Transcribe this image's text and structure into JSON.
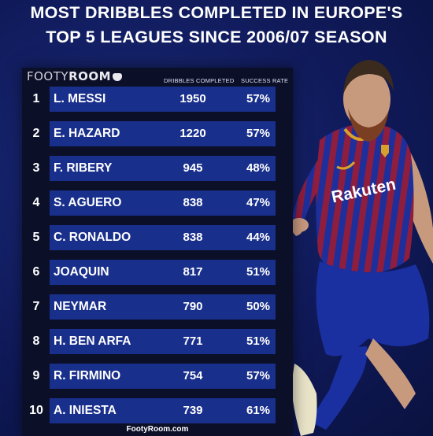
{
  "title": {
    "line1": "MOST DRIBBLES COMPLETED IN EUROPE'S",
    "line2": "TOP 5 LEAGUES SINCE 2006/07 SEASON"
  },
  "logo": {
    "thin": "FOOTY",
    "bold": "ROOM"
  },
  "headers": {
    "dribbles": "DRIBBLES COMPLETED",
    "success": "SUCCESS RATE"
  },
  "rows": [
    {
      "rank": "1",
      "name": "L. MESSI",
      "dribbles": "1950",
      "rate": "57%"
    },
    {
      "rank": "2",
      "name": "E. HAZARD",
      "dribbles": "1220",
      "rate": "57%"
    },
    {
      "rank": "3",
      "name": "F. RIBERY",
      "dribbles": "945",
      "rate": "48%"
    },
    {
      "rank": "4",
      "name": "S. AGUERO",
      "dribbles": "838",
      "rate": "47%"
    },
    {
      "rank": "5",
      "name": "C. RONALDO",
      "dribbles": "838",
      "rate": "44%"
    },
    {
      "rank": "6",
      "name": "JOAQUIN",
      "dribbles": "817",
      "rate": "51%"
    },
    {
      "rank": "7",
      "name": "NEYMAR",
      "dribbles": "790",
      "rate": "50%"
    },
    {
      "rank": "8",
      "name": "H. BEN ARFA",
      "dribbles": "771",
      "rate": "51%"
    },
    {
      "rank": "9",
      "name": "R. FIRMINO",
      "dribbles": "754",
      "rate": "57%"
    },
    {
      "rank": "10",
      "name": "A. INIESTA",
      "dribbles": "739",
      "rate": "61%"
    }
  ],
  "player_image": {
    "sponsor_text": "Rakuten"
  },
  "footer": "FootyRoom.com",
  "colors": {
    "background": "#101a5a",
    "bar": "#192f8c",
    "panel": "#0b0f28"
  }
}
